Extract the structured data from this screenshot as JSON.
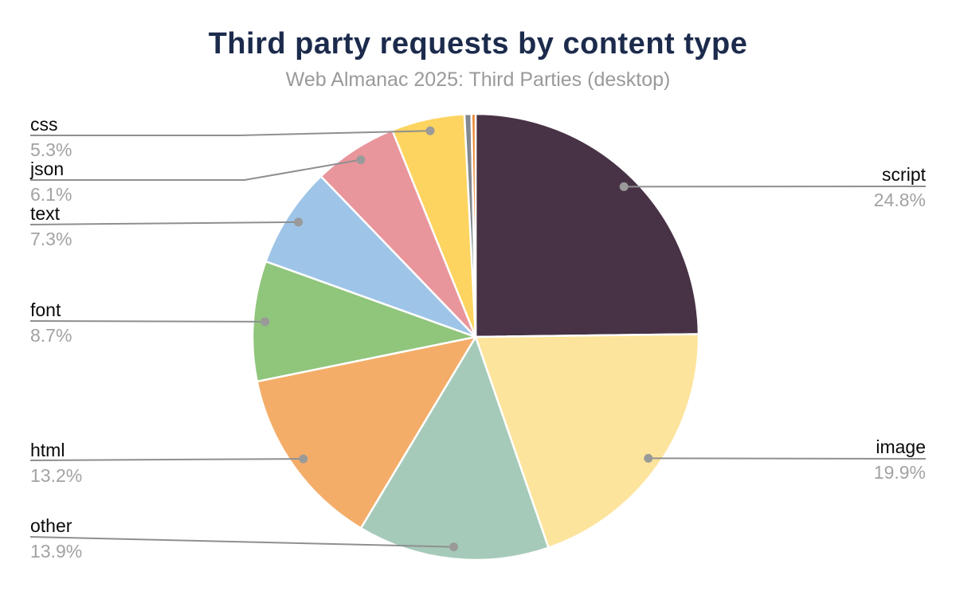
{
  "colors": {
    "title": "#1c2b4c",
    "subtitle": "#9a9a9a",
    "label_name": "#0a0a0a",
    "label_percent": "#a2a2a2",
    "leader_line": "#8f8f8f",
    "leader_dot": "#9a9a9a",
    "slice_divider": "#ffffff"
  },
  "chart_data": {
    "type": "pie",
    "title": "Third party requests by content type",
    "subtitle": "Web Almanac 2025: Third Parties (desktop)",
    "unit": "%",
    "start_angle_deg": 0,
    "direction": "clockwise-from-top",
    "legend_position": "outside-leader-labels",
    "slices": [
      {
        "label": "script",
        "value": 24.8,
        "pct": "24.8%",
        "color": "#483245"
      },
      {
        "label": "image",
        "value": 19.9,
        "pct": "19.9%",
        "color": "#fde49c"
      },
      {
        "label": "other",
        "value": 13.9,
        "pct": "13.9%",
        "color": "#a6cab9"
      },
      {
        "label": "html",
        "value": 13.2,
        "pct": "13.2%",
        "color": "#f4ad69"
      },
      {
        "label": "font",
        "value": 8.7,
        "pct": "8.7%",
        "color": "#90c57c"
      },
      {
        "label": "text",
        "value": 7.3,
        "pct": "7.3%",
        "color": "#9ec5e8"
      },
      {
        "label": "json",
        "value": 6.1,
        "pct": "6.1%",
        "color": "#e9959c"
      },
      {
        "label": "css",
        "value": 5.3,
        "pct": "5.3%",
        "color": "#fdd45f"
      },
      {
        "label": "",
        "value": 0.5,
        "pct": "",
        "color": "#82898f"
      },
      {
        "label": "",
        "value": 0.3,
        "pct": "",
        "color": "#e8872f"
      }
    ]
  }
}
